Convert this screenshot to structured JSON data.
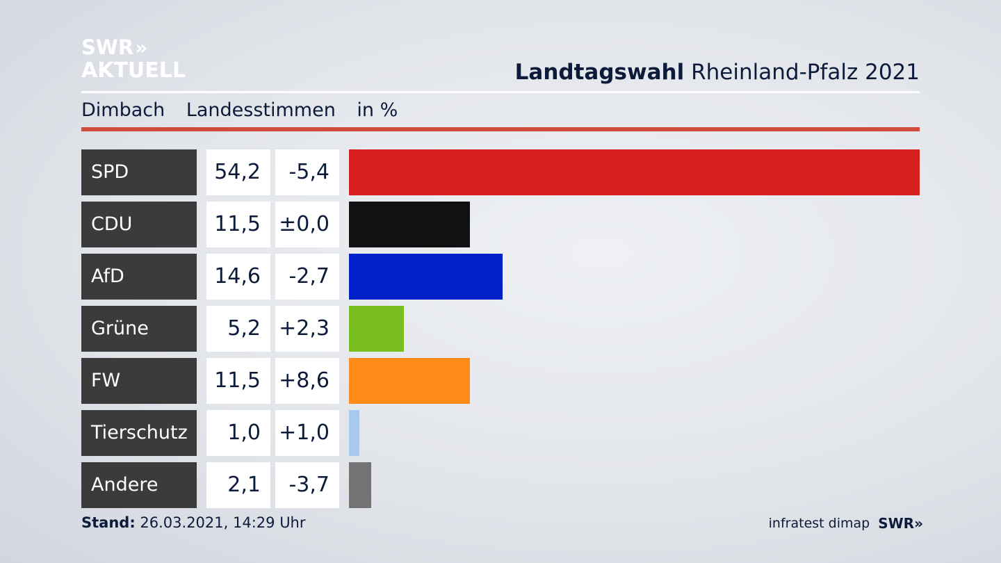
{
  "logo": {
    "line1": "SWR",
    "line1_chevrons": "»",
    "line2": "AKTUELL"
  },
  "header": {
    "title_bold": "Landtagswahl",
    "title_rest": "Rheinland-Pfalz 2021"
  },
  "subheader": {
    "place": "Dimbach",
    "measure": "Landesstimmen",
    "unit": "in %"
  },
  "colors": {
    "accent_rule": "#d14b3c",
    "label_bg": "#3b3b3b"
  },
  "chart_data": {
    "type": "bar",
    "orientation": "horizontal",
    "unit": "%",
    "xlim": [
      0,
      54.2
    ],
    "categories": [
      "SPD",
      "CDU",
      "AfD",
      "Grüne",
      "FW",
      "Tierschutz",
      "Andere"
    ],
    "values": [
      54.2,
      11.5,
      14.6,
      5.2,
      11.5,
      1.0,
      2.1
    ],
    "value_labels": [
      "54,2",
      "11,5",
      "14,6",
      "5,2",
      "11,5",
      "1,0",
      "2,1"
    ],
    "diff_labels": [
      "-5,4",
      "±0,0",
      "-2,7",
      "+2,3",
      "+8,6",
      "+1,0",
      "-3,7"
    ],
    "colors": [
      "#d71f1f",
      "#111111",
      "#0021c8",
      "#78be1e",
      "#ff8b18",
      "#a8c8f0",
      "#737373"
    ]
  },
  "footer": {
    "stand_label": "Stand:",
    "stand_value": "26.03.2021, 14:29 Uhr",
    "source": "infratest dimap",
    "brand": "SWR",
    "brand_chevrons": "»"
  }
}
